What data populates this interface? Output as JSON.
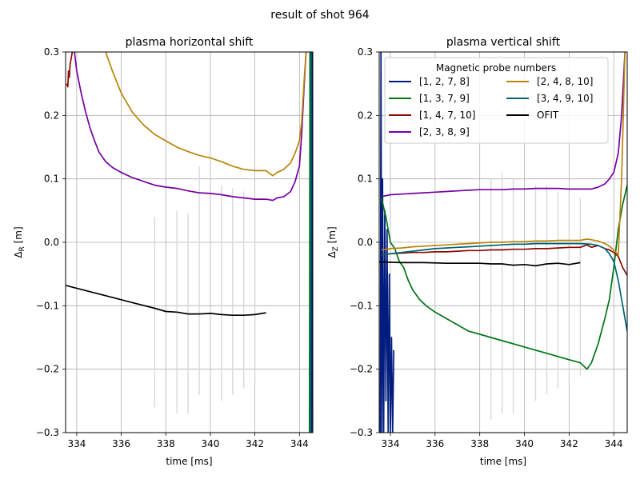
{
  "figure": {
    "title": "result of shot 964"
  },
  "legend": {
    "title": "Magnetic probe numbers",
    "placement": "upper-left (right panel)",
    "entries": [
      {
        "label": "[1, 2, 7, 8]",
        "color": "#001c7f"
      },
      {
        "label": "[1, 3, 7, 9]",
        "color": "#017517"
      },
      {
        "label": "[1, 4, 7, 10]",
        "color": "#8c0800"
      },
      {
        "label": "[2, 3, 8, 9]",
        "color": "#7600a1"
      },
      {
        "label": "[2, 4, 8, 10]",
        "color": "#b8850a"
      },
      {
        "label": "[3, 4, 9, 10]",
        "color": "#006374"
      },
      {
        "label": "OFIT",
        "color": "#000000"
      }
    ]
  },
  "chart_data": [
    {
      "type": "line",
      "title": "plasma horizontal shift",
      "xlabel": "time [ms]",
      "ylabel": "Δ_R [m]",
      "ylabel_main": "Δ",
      "ylabel_sub": "R",
      "ylabel_unit": " [m]",
      "xlim": [
        333.5,
        344.6
      ],
      "ylim": [
        -0.3,
        0.3
      ],
      "xticks": [
        334,
        336,
        338,
        340,
        342,
        344
      ],
      "yticks": [
        -0.3,
        -0.2,
        -0.1,
        0.0,
        0.1,
        0.2,
        0.3
      ],
      "xtick_labels": [
        "334",
        "336",
        "338",
        "340",
        "342",
        "344"
      ],
      "ytick_labels": [
        "−0.3",
        "−0.2",
        "−0.1",
        "0.0",
        "0.1",
        "0.2",
        "0.3"
      ],
      "grid": true,
      "series": [
        {
          "name": "[1, 4, 7, 10]",
          "color": "#8c0800",
          "x": [
            333.55,
            333.6,
            333.63,
            333.67,
            333.7,
            333.75,
            333.8
          ],
          "y": [
            0.25,
            0.245,
            0.27,
            0.26,
            0.28,
            0.29,
            0.3
          ]
        },
        {
          "name": "[2, 3, 8, 9]",
          "color": "#7600a1",
          "x": [
            333.9,
            334.0,
            334.2,
            334.4,
            334.6,
            334.8,
            335.0,
            335.3,
            335.6,
            336.0,
            336.5,
            337.0,
            337.5,
            338.0,
            338.5,
            339.0,
            339.5,
            340.0,
            340.5,
            341.0,
            341.5,
            342.0,
            342.5,
            342.8,
            343.0,
            343.3,
            343.6,
            343.8,
            344.0,
            344.1,
            344.2,
            344.3
          ],
          "y": [
            0.3,
            0.27,
            0.235,
            0.205,
            0.18,
            0.16,
            0.142,
            0.127,
            0.118,
            0.11,
            0.102,
            0.096,
            0.09,
            0.087,
            0.085,
            0.081,
            0.078,
            0.077,
            0.075,
            0.072,
            0.07,
            0.068,
            0.068,
            0.066,
            0.07,
            0.072,
            0.08,
            0.095,
            0.12,
            0.17,
            0.24,
            0.3
          ]
        },
        {
          "name": "[2, 4, 8, 10]",
          "color": "#b8850a",
          "x": [
            335.3,
            335.6,
            336.0,
            336.5,
            337.0,
            337.5,
            338.0,
            338.5,
            339.0,
            339.5,
            340.0,
            340.5,
            341.0,
            341.5,
            342.0,
            342.5,
            342.8,
            343.0,
            343.3,
            343.6,
            343.8,
            344.0,
            344.1,
            344.2,
            344.3
          ],
          "y": [
            0.3,
            0.27,
            0.235,
            0.205,
            0.185,
            0.17,
            0.16,
            0.15,
            0.143,
            0.137,
            0.133,
            0.127,
            0.12,
            0.115,
            0.113,
            0.113,
            0.105,
            0.11,
            0.115,
            0.125,
            0.14,
            0.16,
            0.19,
            0.25,
            0.3
          ]
        },
        {
          "name": "OFIT",
          "color": "#000000",
          "x": [
            333.5,
            334.5,
            335.5,
            336.5,
            337.5,
            338.0,
            338.5,
            339.0,
            339.5,
            340.0,
            340.5,
            341.0,
            341.5,
            342.0,
            342.5
          ],
          "y": [
            -0.068,
            -0.077,
            -0.086,
            -0.095,
            -0.104,
            -0.109,
            -0.11,
            -0.113,
            -0.113,
            -0.112,
            -0.114,
            -0.115,
            -0.115,
            -0.114,
            -0.111
          ]
        },
        {
          "name": "[1, 2, 7, 8]",
          "color": "#001c7f",
          "x": [
            344.55,
            344.57
          ],
          "y": [
            -0.3,
            0.3
          ]
        },
        {
          "name": "[3, 4, 9, 10]",
          "color": "#006374",
          "x": [
            344.5,
            344.52
          ],
          "y": [
            -0.3,
            0.3
          ]
        },
        {
          "name": "[1, 3, 7, 9]",
          "color": "#017517",
          "x": [
            344.45,
            344.47
          ],
          "y": [
            -0.3,
            0.3
          ]
        }
      ]
    },
    {
      "type": "line",
      "title": "plasma vertical shift",
      "xlabel": "time [ms]",
      "ylabel": "Δ_Z [m]",
      "ylabel_main": "Δ",
      "ylabel_sub": "Z",
      "ylabel_unit": " [m]",
      "xlim": [
        333.5,
        344.6
      ],
      "ylim": [
        -0.3,
        0.3
      ],
      "xticks": [
        334,
        336,
        338,
        340,
        342,
        344
      ],
      "yticks": [
        -0.3,
        -0.2,
        -0.1,
        0.0,
        0.1,
        0.2,
        0.3
      ],
      "xtick_labels": [
        "334",
        "336",
        "338",
        "340",
        "342",
        "344"
      ],
      "ytick_labels": [
        "−0.3",
        "−0.2",
        "−0.1",
        "0.0",
        "0.1",
        "0.2",
        "0.3"
      ],
      "grid": true,
      "series": [
        {
          "name": "[1, 2, 7, 8]",
          "color": "#001c7f",
          "x": [
            333.55,
            333.58,
            333.62,
            333.65,
            333.7,
            333.75,
            333.8,
            333.85,
            333.9,
            333.95,
            334.0,
            334.05,
            334.1,
            334.15
          ],
          "y": [
            -0.3,
            0.3,
            -0.3,
            0.1,
            -0.3,
            0.05,
            -0.25,
            0.02,
            -0.3,
            -0.05,
            -0.3,
            -0.15,
            -0.3,
            -0.17
          ]
        },
        {
          "name": "[1, 3, 7, 9]",
          "color": "#017517",
          "x": [
            333.6,
            333.8,
            334.0,
            334.2,
            334.4,
            334.6,
            334.8,
            335.0,
            335.3,
            335.6,
            336.0,
            336.5,
            337.0,
            337.5,
            338.0,
            338.5,
            339.0,
            339.5,
            340.0,
            340.5,
            341.0,
            341.5,
            342.0,
            342.5,
            342.8,
            343.0,
            343.3,
            343.6,
            343.8,
            344.0,
            344.2,
            344.4,
            344.6
          ],
          "y": [
            0.07,
            0.04,
            0.0,
            -0.01,
            -0.03,
            -0.04,
            -0.06,
            -0.075,
            -0.09,
            -0.1,
            -0.11,
            -0.12,
            -0.13,
            -0.14,
            -0.145,
            -0.15,
            -0.155,
            -0.16,
            -0.165,
            -0.17,
            -0.175,
            -0.18,
            -0.185,
            -0.19,
            -0.2,
            -0.19,
            -0.16,
            -0.12,
            -0.09,
            -0.04,
            0.02,
            0.06,
            0.09
          ]
        },
        {
          "name": "[1, 4, 7, 10]",
          "color": "#8c0800",
          "x": [
            333.6,
            334.0,
            334.5,
            335.0,
            335.5,
            336.0,
            336.5,
            337.0,
            337.5,
            338.0,
            338.5,
            339.0,
            339.5,
            340.0,
            340.5,
            341.0,
            341.5,
            342.0,
            342.5,
            342.8,
            343.0,
            343.3,
            343.6,
            343.8,
            344.0,
            344.2,
            344.4,
            344.6
          ],
          "y": [
            -0.02,
            -0.018,
            -0.017,
            -0.016,
            -0.016,
            -0.015,
            -0.015,
            -0.014,
            -0.013,
            -0.013,
            -0.012,
            -0.012,
            -0.011,
            -0.011,
            -0.01,
            -0.01,
            -0.009,
            -0.008,
            -0.008,
            -0.004,
            -0.008,
            -0.005,
            -0.01,
            -0.012,
            -0.016,
            -0.022,
            -0.04,
            -0.052
          ]
        },
        {
          "name": "[2, 3, 8, 9]",
          "color": "#7600a1",
          "x": [
            333.6,
            334.0,
            334.5,
            335.0,
            335.5,
            336.0,
            336.5,
            337.0,
            337.5,
            338.0,
            338.5,
            339.0,
            339.5,
            340.0,
            340.5,
            341.0,
            341.5,
            342.0,
            342.5,
            343.0,
            343.3,
            343.6,
            343.8,
            344.0,
            344.2,
            344.35,
            344.5
          ],
          "y": [
            0.072,
            0.075,
            0.076,
            0.077,
            0.078,
            0.079,
            0.08,
            0.081,
            0.082,
            0.083,
            0.083,
            0.083,
            0.084,
            0.084,
            0.085,
            0.085,
            0.085,
            0.084,
            0.084,
            0.084,
            0.087,
            0.092,
            0.1,
            0.11,
            0.14,
            0.2,
            0.3
          ]
        },
        {
          "name": "[2, 4, 8, 10]",
          "color": "#b8850a",
          "x": [
            333.6,
            334.0,
            334.5,
            335.0,
            335.5,
            336.0,
            336.5,
            337.0,
            337.5,
            338.0,
            338.5,
            339.0,
            339.5,
            340.0,
            340.5,
            341.0,
            341.5,
            342.0,
            342.5,
            342.8,
            343.0,
            343.3,
            343.6,
            343.8,
            344.0,
            344.2,
            344.35,
            344.5
          ],
          "y": [
            -0.012,
            -0.01,
            -0.009,
            -0.007,
            -0.006,
            -0.005,
            -0.004,
            -0.003,
            -0.002,
            -0.001,
            0.0,
            0.0,
            0.001,
            0.001,
            0.002,
            0.002,
            0.003,
            0.003,
            0.003,
            0.005,
            0.004,
            0.002,
            -0.002,
            -0.006,
            -0.012,
            -0.02,
            0.1,
            0.3
          ]
        },
        {
          "name": "[3, 4, 9, 10]",
          "color": "#006374",
          "x": [
            333.6,
            334.0,
            334.5,
            335.0,
            335.5,
            336.0,
            336.5,
            337.0,
            337.5,
            338.0,
            338.5,
            339.0,
            339.5,
            340.0,
            340.5,
            341.0,
            341.5,
            342.0,
            342.5,
            343.0,
            343.3,
            343.6,
            343.8,
            344.0,
            344.2,
            344.4,
            344.6
          ],
          "y": [
            -0.02,
            -0.018,
            -0.016,
            -0.014,
            -0.012,
            -0.01,
            -0.009,
            -0.008,
            -0.007,
            -0.006,
            -0.005,
            -0.004,
            -0.003,
            -0.003,
            -0.002,
            -0.002,
            -0.002,
            -0.002,
            -0.002,
            -0.003,
            -0.005,
            -0.01,
            -0.018,
            -0.03,
            -0.06,
            -0.1,
            -0.14
          ]
        },
        {
          "name": "OFIT",
          "color": "#000000",
          "x": [
            333.5,
            334.5,
            335.5,
            336.5,
            337.5,
            338.0,
            338.5,
            339.0,
            339.5,
            340.0,
            340.5,
            341.0,
            341.5,
            342.0,
            342.5
          ],
          "y": [
            -0.031,
            -0.032,
            -0.032,
            -0.033,
            -0.033,
            -0.033,
            -0.034,
            -0.034,
            -0.036,
            -0.035,
            -0.037,
            -0.034,
            -0.033,
            -0.035,
            -0.032
          ]
        }
      ]
    }
  ]
}
